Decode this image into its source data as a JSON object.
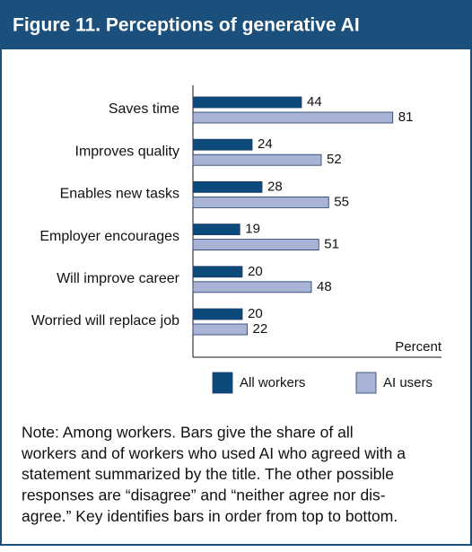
{
  "chart_data": {
    "type": "bar",
    "orientation": "horizontal",
    "title": "Figure 11. Perceptions of generative AI",
    "categories": [
      "Saves time",
      "Improves quality",
      "Enables new tasks",
      "Employer encourages",
      "Will improve career",
      "Worried will replace job"
    ],
    "series": [
      {
        "name": "All workers",
        "color": "#0d4a7c",
        "values": [
          44,
          24,
          28,
          19,
          20,
          20
        ]
      },
      {
        "name": "AI users",
        "color": "#a8b3d6",
        "values": [
          81,
          52,
          55,
          51,
          48,
          22
        ]
      }
    ],
    "xlim": [
      0,
      100
    ],
    "xlabel": "Percent",
    "note": [
      "Note: Among workers. Bars give the share of all",
      "workers and of workers who used AI who agreed with a",
      "statement summarized by the title. The other possible",
      "responses are “disagree” and “neither agree nor dis-",
      "agree.” Key identifies bars in order from top to bottom."
    ]
  }
}
